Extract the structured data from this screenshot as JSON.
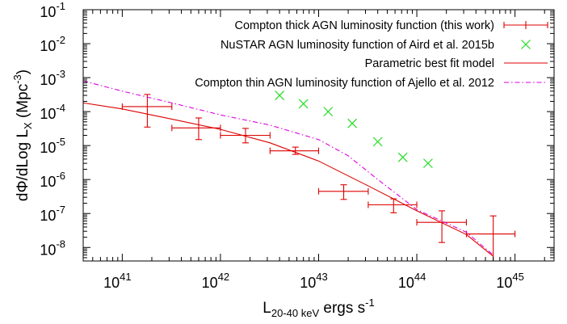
{
  "chart_data": {
    "type": "scatter",
    "title": "",
    "xlabel": {
      "main": "L",
      "sub": "20-40 keV",
      "rest": " ergs s",
      "sup": "-1"
    },
    "ylabel": {
      "main": "dΦ/dLog L",
      "sub": "X",
      "rest": " (Mpc",
      "sup": "-3",
      "close": ")"
    },
    "x_scale": "log",
    "y_scale": "log",
    "xlim": [
      4e+40,
      2.5e+45
    ],
    "ylim": [
      4e-09,
      0.1
    ],
    "x_ticks": [
      {
        "value": 1e+41,
        "base": "10",
        "exp": "41"
      },
      {
        "value": 1e+42,
        "base": "10",
        "exp": "42"
      },
      {
        "value": 1e+43,
        "base": "10",
        "exp": "43"
      },
      {
        "value": 1e+44,
        "base": "10",
        "exp": "44"
      },
      {
        "value": 1e+45,
        "base": "10",
        "exp": "45"
      }
    ],
    "y_ticks": [
      {
        "value": 1e-08,
        "base": "10",
        "exp": "-8"
      },
      {
        "value": 1e-07,
        "base": "10",
        "exp": "-7"
      },
      {
        "value": 1e-06,
        "base": "10",
        "exp": "-6"
      },
      {
        "value": 1e-05,
        "base": "10",
        "exp": "-5"
      },
      {
        "value": 0.0001,
        "base": "10",
        "exp": "-4"
      },
      {
        "value": 0.001,
        "base": "10",
        "exp": "-3"
      },
      {
        "value": 0.01,
        "base": "10",
        "exp": "-2"
      },
      {
        "value": 0.1,
        "base": "10",
        "exp": "-1"
      }
    ],
    "grid": false,
    "legend_position": "top-right",
    "series": [
      {
        "name": "Compton thick AGN luminosity function (this work)",
        "kind": "errorbars",
        "color": "#dd0000",
        "points": [
          {
            "x": 1.8e+41,
            "y": 0.00014,
            "xlo": 1e+41,
            "xhi": 3.2e+41,
            "ylo": 3.5e-05,
            "yhi": 0.00032
          },
          {
            "x": 6e+41,
            "y": 3.3e-05,
            "xlo": 3.2e+41,
            "xhi": 1e+42,
            "ylo": 1.5e-05,
            "yhi": 6.5e-05
          },
          {
            "x": 1.8e+42,
            "y": 2e-05,
            "xlo": 1e+42,
            "xhi": 3.2e+42,
            "ylo": 1.2e-05,
            "yhi": 3.2e-05
          },
          {
            "x": 5.8e+42,
            "y": 7e-06,
            "xlo": 3.2e+42,
            "xhi": 1e+43,
            "ylo": 5.5e-06,
            "yhi": 9e-06
          },
          {
            "x": 1.8e+43,
            "y": 4.5e-07,
            "xlo": 1e+43,
            "xhi": 3.2e+43,
            "ylo": 2.6e-07,
            "yhi": 7e-07
          },
          {
            "x": 5.8e+43,
            "y": 1.8e-07,
            "xlo": 3.2e+43,
            "xhi": 1e+44,
            "ylo": 1.05e-07,
            "yhi": 2.7e-07
          },
          {
            "x": 1.8e+44,
            "y": 5.5e-08,
            "xlo": 1e+44,
            "xhi": 3.2e+44,
            "ylo": 1.4e-08,
            "yhi": 1.2e-07
          },
          {
            "x": 6e+44,
            "y": 2.5e-08,
            "xlo": 3.2e+44,
            "xhi": 1e+45,
            "ylo": 3.5e-09,
            "yhi": 8.5e-08
          }
        ]
      },
      {
        "name": "NuSTAR AGN luminosity function of Aird et al. 2015b",
        "kind": "markers",
        "color": "#22dd22",
        "points": [
          {
            "x": 4e+42,
            "y": 0.0003
          },
          {
            "x": 7e+42,
            "y": 0.00017
          },
          {
            "x": 1.25e+43,
            "y": 0.0001
          },
          {
            "x": 2.2e+43,
            "y": 4.5e-05
          },
          {
            "x": 4e+43,
            "y": 1.3e-05
          },
          {
            "x": 7.2e+43,
            "y": 4.5e-06
          },
          {
            "x": 1.3e+44,
            "y": 3e-06
          }
        ]
      },
      {
        "name": "Parametric best fit model",
        "kind": "line",
        "color": "#dd0000",
        "dash": "solid",
        "points": [
          {
            "x": 4e+40,
            "y": 0.00018
          },
          {
            "x": 1e+41,
            "y": 0.00012
          },
          {
            "x": 3.2e+41,
            "y": 6e-05
          },
          {
            "x": 1e+42,
            "y": 3e-05
          },
          {
            "x": 3.2e+42,
            "y": 1.2e-05
          },
          {
            "x": 1e+43,
            "y": 3.5e-06
          },
          {
            "x": 3.2e+43,
            "y": 6.5e-07
          },
          {
            "x": 1e+44,
            "y": 1.2e-07
          },
          {
            "x": 3.2e+44,
            "y": 2.4e-08
          },
          {
            "x": 6e+44,
            "y": 5.5e-09
          }
        ]
      },
      {
        "name": "Compton thin AGN luminosity function of Ajello et al. 2012",
        "kind": "line",
        "color": "#dd00dd",
        "dash": "dashdot",
        "points": [
          {
            "x": 4e+40,
            "y": 0.0008
          },
          {
            "x": 1e+41,
            "y": 0.0004
          },
          {
            "x": 3.2e+41,
            "y": 0.00018
          },
          {
            "x": 1e+42,
            "y": 8e-05
          },
          {
            "x": 3.2e+42,
            "y": 4e-05
          },
          {
            "x": 1e+43,
            "y": 1.5e-05
          },
          {
            "x": 2e+43,
            "y": 5e-06
          },
          {
            "x": 4e+43,
            "y": 1e-06
          },
          {
            "x": 1e+44,
            "y": 1.3e-07
          },
          {
            "x": 3.2e+44,
            "y": 2.8e-08
          },
          {
            "x": 6e+44,
            "y": 6e-09
          }
        ]
      }
    ]
  }
}
